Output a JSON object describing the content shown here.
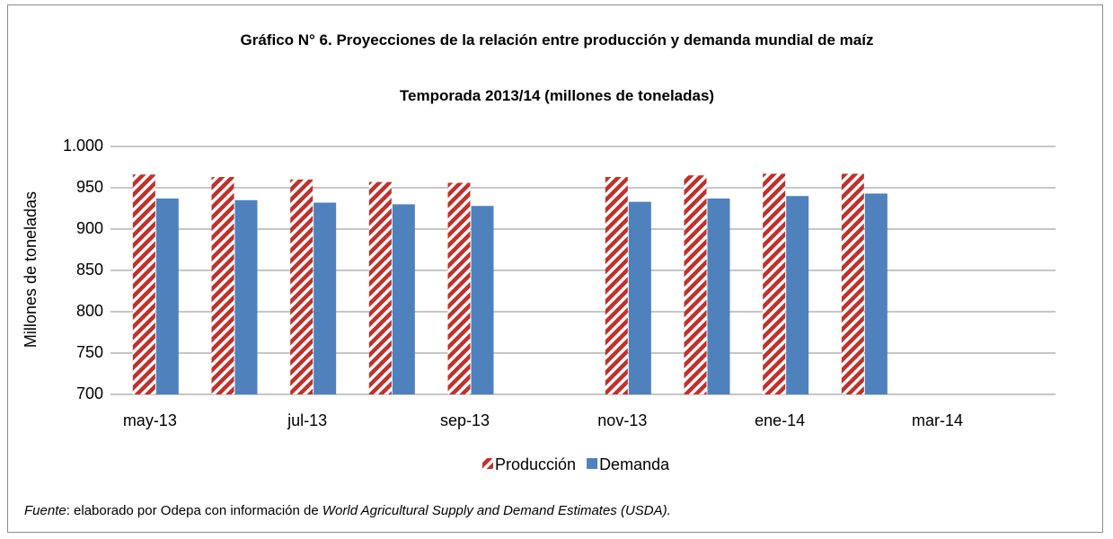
{
  "chart_data": {
    "type": "bar",
    "title": "Gráfico N° 6. Proyecciones de la relación entre producción y demanda mundial de maíz",
    "subtitle": "Temporada 2013/14 (millones de toneladas)",
    "y_label": "Millones de toneladas",
    "categories": [
      "may-13",
      null,
      "jul-13",
      null,
      "sep-13",
      null,
      "nov-13",
      null,
      "ene-14",
      null,
      "mar-14",
      null
    ],
    "series": [
      {
        "name": "Producción",
        "color": "#c0312b",
        "pattern": "diagonal-stripes",
        "values": [
          966,
          963,
          960,
          957,
          956,
          null,
          963,
          965,
          967,
          967,
          null,
          null
        ]
      },
      {
        "name": "Demanda",
        "color": "#4f81bd",
        "values": [
          937,
          935,
          932,
          930,
          928,
          null,
          933,
          937,
          940,
          943,
          null,
          null
        ]
      }
    ],
    "ylim": [
      700,
      1000
    ],
    "yticks": [
      700,
      750,
      800,
      850,
      900,
      950,
      {
        "value": 1000,
        "label": "1.000"
      }
    ],
    "grid": true,
    "legend": "bottom"
  },
  "note": {
    "label": "Fuente",
    "text": ": elaborado por Odepa con información de ",
    "publication": "World Agricultural Supply and Demand Estimates  (USDA)."
  }
}
